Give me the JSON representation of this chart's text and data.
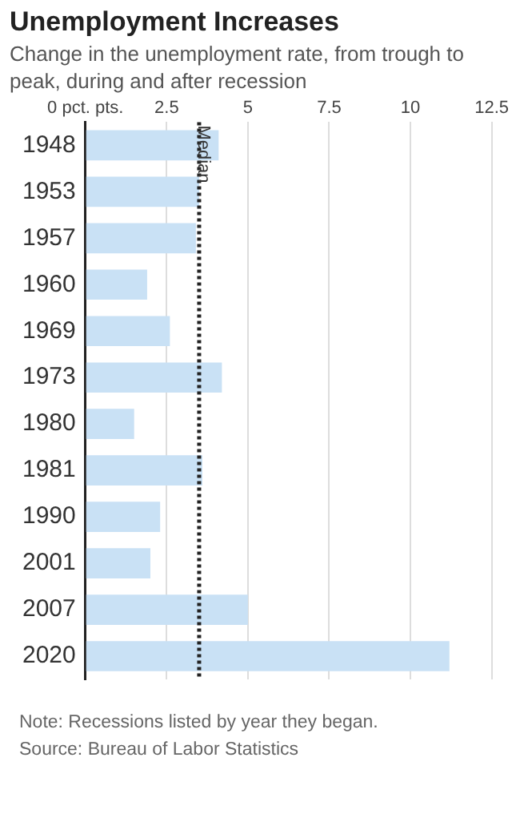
{
  "chart_data": {
    "type": "bar",
    "orientation": "horizontal",
    "title": "Unemployment Increases",
    "subtitle": "Change in the unemployment rate, from trough to peak, during and after recession",
    "categories": [
      "1948",
      "1953",
      "1957",
      "1960",
      "1969",
      "1973",
      "1980",
      "1981",
      "1990",
      "2001",
      "2007",
      "2020"
    ],
    "values": [
      4.1,
      3.5,
      3.4,
      1.9,
      2.6,
      4.2,
      1.5,
      3.6,
      2.3,
      2.0,
      5.0,
      11.2
    ],
    "color": "#c9e1f5",
    "xlim": [
      0,
      12.5
    ],
    "xticks": [
      {
        "value": 0,
        "label": "0 pct. pts."
      },
      2.5,
      5,
      7.5,
      10,
      12.5
    ],
    "grid": "x",
    "ref_lines": [
      {
        "axis": "x",
        "value": 3.5,
        "label": "Median",
        "line_style": "dotted",
        "color": "#222222"
      }
    ],
    "annotations": [
      "Note: Recessions listed by year they began.",
      "Source: Bureau of Labor Statistics"
    ]
  }
}
